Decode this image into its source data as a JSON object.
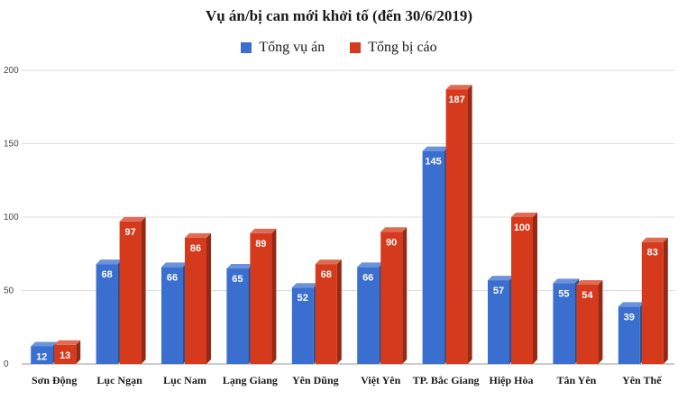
{
  "chart_data": {
    "type": "bar",
    "title": "Vụ án/bị can mới khởi tố (đến 30/6/2019)",
    "categories": [
      "Sơn Động",
      "Lục Ngạn",
      "Lục Nam",
      "Lạng Giang",
      "Yên Dũng",
      "Việt Yên",
      "TP. Bắc Giang",
      "Hiệp Hòa",
      "Tân Yên",
      "Yên Thế"
    ],
    "series": [
      {
        "name": "Tổng vụ án",
        "color": "#3a6fd0",
        "values": [
          12,
          68,
          66,
          65,
          52,
          66,
          145,
          57,
          55,
          39
        ]
      },
      {
        "name": "Tổng bị cáo",
        "color": "#d63a1c",
        "values": [
          13,
          97,
          86,
          89,
          68,
          90,
          187,
          100,
          54,
          83
        ]
      }
    ],
    "y_ticks": [
      "0",
      "50",
      "100",
      "150",
      "200"
    ],
    "ylim": [
      0,
      200
    ],
    "grid": true,
    "legend_position": "top-center",
    "xlabel": "",
    "ylabel": ""
  }
}
